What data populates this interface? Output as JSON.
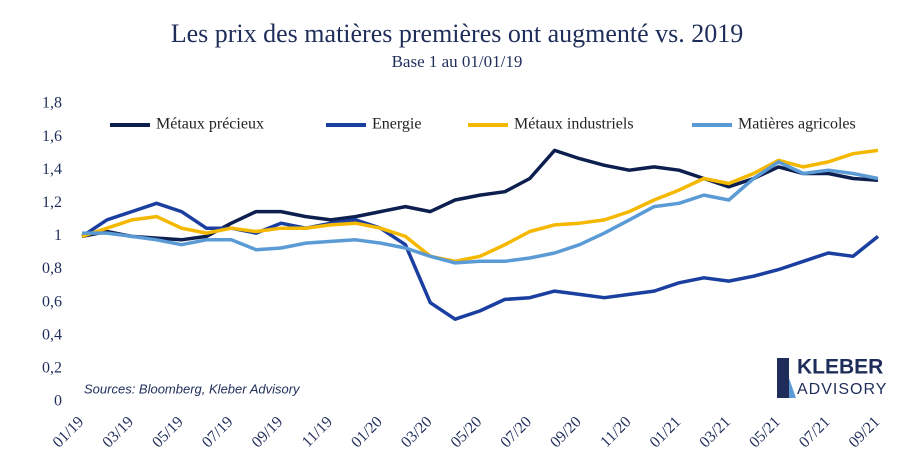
{
  "chart_data": {
    "type": "line",
    "title": "Les prix des matières premières ont augmenté vs. 2019",
    "subtitle": "Base 1 au 01/01/19",
    "source": "Sources: Bloomberg, Kleber Advisory",
    "logo": [
      "KLEBER",
      "ADVISORY"
    ],
    "categories": [
      "01/19",
      null,
      "03/19",
      null,
      "05/19",
      null,
      "07/19",
      null,
      "09/19",
      null,
      "11/19",
      null,
      "01/20",
      null,
      "03/20",
      null,
      "05/20",
      null,
      "07/20",
      null,
      "09/20",
      null,
      "11/20",
      null,
      "01/21",
      null,
      "03/21",
      null,
      "05/21",
      null,
      "07/21",
      null,
      "09/21"
    ],
    "ylim": [
      0,
      1.8
    ],
    "yticks": [
      0,
      {
        "value": 0.2,
        "label": "0,2"
      },
      {
        "value": 0.4,
        "label": "0,4"
      },
      {
        "value": 0.6,
        "label": "0,6"
      },
      {
        "value": 0.8,
        "label": "0,8"
      },
      1,
      {
        "value": 1.2,
        "label": "1,2"
      },
      {
        "value": 1.4,
        "label": "1,4"
      },
      {
        "value": 1.6,
        "label": "1,6"
      },
      {
        "value": 1.8,
        "label": "1,8"
      }
    ],
    "legend": "top",
    "series": [
      {
        "name": "Métaux précieux",
        "color": "#0d1f4f",
        "values": [
          1.0,
          1.03,
          1.0,
          0.99,
          0.98,
          1.0,
          1.08,
          1.15,
          1.15,
          1.12,
          1.1,
          1.12,
          1.15,
          1.18,
          1.15,
          1.22,
          1.25,
          1.27,
          1.35,
          1.52,
          1.47,
          1.43,
          1.4,
          1.42,
          1.4,
          1.35,
          1.3,
          1.35,
          1.42,
          1.38,
          1.38,
          1.35,
          1.34
        ]
      },
      {
        "name": "Energie",
        "color": "#1a3fa0",
        "values": [
          1.0,
          1.1,
          1.15,
          1.2,
          1.15,
          1.05,
          1.05,
          1.02,
          1.08,
          1.05,
          1.08,
          1.1,
          1.05,
          0.95,
          0.6,
          0.5,
          0.55,
          0.62,
          0.63,
          0.67,
          0.65,
          0.63,
          0.65,
          0.67,
          0.72,
          0.75,
          0.73,
          0.76,
          0.8,
          0.85,
          0.9,
          0.88,
          1.0
        ]
      },
      {
        "name": "Métaux industriels",
        "color": "#f5b800",
        "values": [
          1.0,
          1.05,
          1.1,
          1.12,
          1.05,
          1.02,
          1.05,
          1.03,
          1.05,
          1.05,
          1.07,
          1.08,
          1.05,
          1.0,
          0.88,
          0.85,
          0.88,
          0.95,
          1.03,
          1.07,
          1.08,
          1.1,
          1.15,
          1.22,
          1.28,
          1.35,
          1.32,
          1.38,
          1.46,
          1.42,
          1.45,
          1.5,
          1.52
        ]
      },
      {
        "name": "Matières agricoles",
        "color": "#5b9bd5",
        "values": [
          1.02,
          1.02,
          1.0,
          0.98,
          0.95,
          0.98,
          0.98,
          0.92,
          0.93,
          0.96,
          0.97,
          0.98,
          0.96,
          0.93,
          0.88,
          0.84,
          0.85,
          0.85,
          0.87,
          0.9,
          0.95,
          1.02,
          1.1,
          1.18,
          1.2,
          1.25,
          1.22,
          1.35,
          1.45,
          1.38,
          1.4,
          1.38,
          1.35
        ]
      }
    ]
  }
}
